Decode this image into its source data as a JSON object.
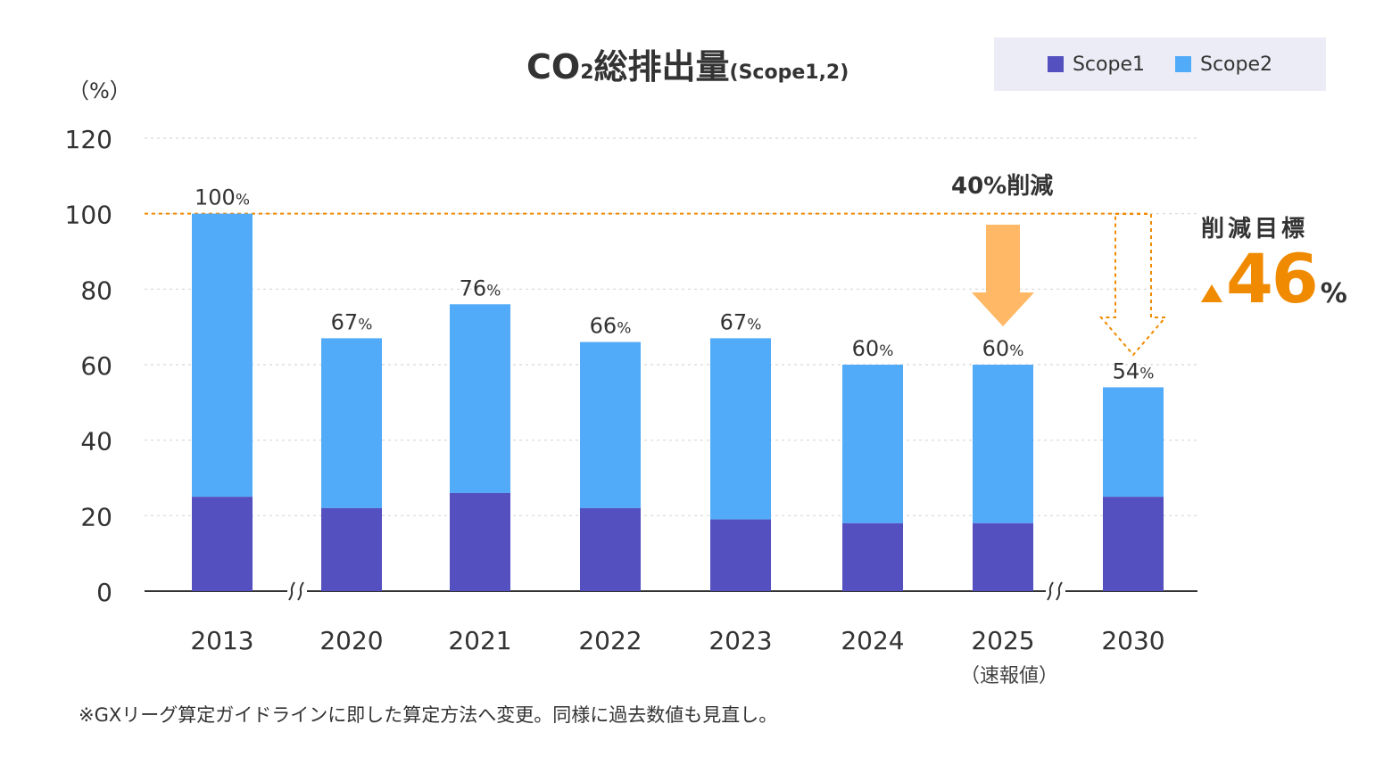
{
  "title": {
    "main": "CO",
    "subscript": "2",
    "rest": "総排出量",
    "scope": "(Scope1,2)"
  },
  "unit_label": "（%）",
  "footnote": "※GXリーグ算定ガイドラインに即した算定方法へ変更。同様に過去数値も見直し。",
  "annotations": {
    "reduction_2025": "40%削減",
    "target_label": "削減目標",
    "target_value": "46",
    "target_unit": "%",
    "year_2025_note": "（速報値）"
  },
  "colors": {
    "scope1": "#5450c0",
    "scope2": "#52abf8",
    "accent_orange": "#f08a00",
    "arrow_orange": "#ffb866"
  },
  "chart_data": {
    "type": "bar",
    "stacked": true,
    "categories": [
      "2013",
      "2020",
      "2021",
      "2022",
      "2023",
      "2024",
      "2025",
      "2030"
    ],
    "series": [
      {
        "name": "Scope1",
        "values": [
          25,
          22,
          26,
          22,
          19,
          18,
          18,
          25
        ]
      },
      {
        "name": "Scope2",
        "values": [
          75,
          45,
          50,
          44,
          48,
          42,
          42,
          29
        ]
      }
    ],
    "totals_labels": [
      "100",
      "67",
      "76",
      "66",
      "67",
      "60",
      "60",
      "54"
    ],
    "total_unit": "%",
    "ylim": [
      0,
      120
    ],
    "yticks": [
      0,
      20,
      40,
      60,
      80,
      100,
      120
    ],
    "grid": true,
    "reference_line_value": 100,
    "legend_position": "top-right",
    "axis_breaks_after": [
      "2013",
      "2025"
    ]
  }
}
